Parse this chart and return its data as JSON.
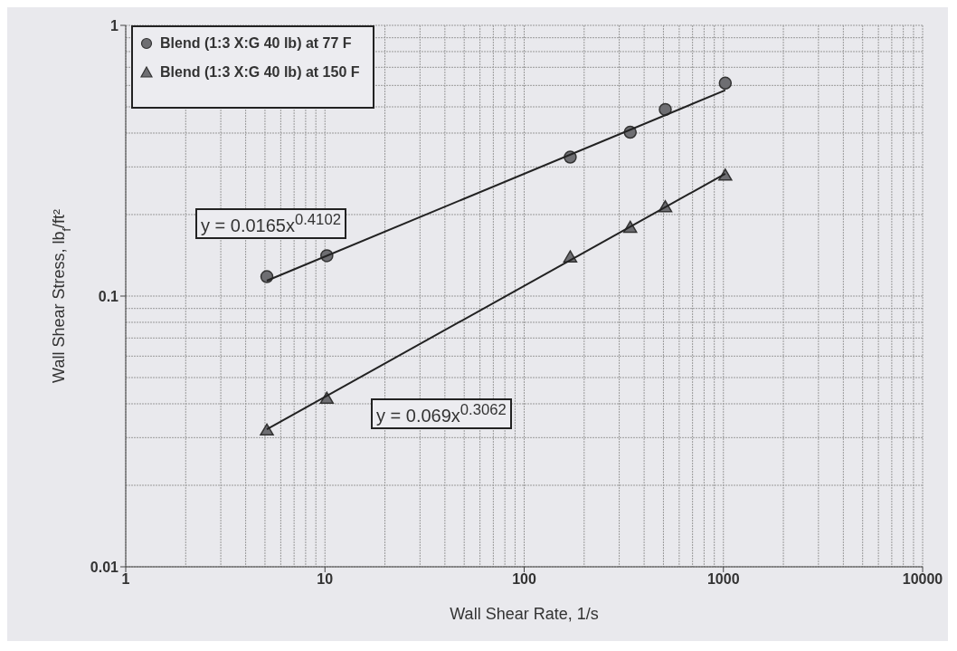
{
  "chart_data": {
    "type": "scatter",
    "xlabel": "Wall Shear Rate, 1/s",
    "ylabel": "Wall Shear Stress, lb$_{f}$/ft²",
    "log": "xy",
    "xlim": [
      1,
      10000
    ],
    "xticks": [
      1,
      10,
      100,
      1000,
      10000
    ],
    "ylim": [
      0.01,
      1
    ],
    "yticks": [
      0.01,
      0.1,
      1
    ],
    "grid": true,
    "legend": "top left",
    "series": [
      {
        "name": "Blend (1:3 X:G 40 lb) at 77 F",
        "marker": "circle",
        "color": "#6e6e72",
        "x": [
          5.11,
          10.22,
          170.3,
          340.6,
          510.9,
          1021.8
        ],
        "values": [
          0.118,
          0.141,
          0.326,
          0.403,
          0.489,
          0.612
        ]
      },
      {
        "name": "Blend (1:3 X:G 40 lb) at 150 F",
        "marker": "triangle",
        "color": "#6e6e72",
        "x": [
          5.11,
          10.22,
          170.3,
          340.6,
          510.9,
          1021.8
        ],
        "values": [
          0.0319,
          0.0418,
          0.139,
          0.179,
          0.213,
          0.279
        ]
      },
      {
        "type": "line",
        "marker": "none",
        "color": "#222222",
        "x": [
          5.11,
          1021.8
        ],
        "values": [
          0.114,
          0.576
        ]
      },
      {
        "type": "line",
        "marker": "none",
        "color": "#222222",
        "x": [
          5.11,
          1021.8
        ],
        "values": [
          0.0322,
          0.283
        ]
      }
    ],
    "annotations": [
      "y = 0.0165x$^{0.4102}$",
      "y = 0.069x$^{0.3062}$"
    ]
  }
}
